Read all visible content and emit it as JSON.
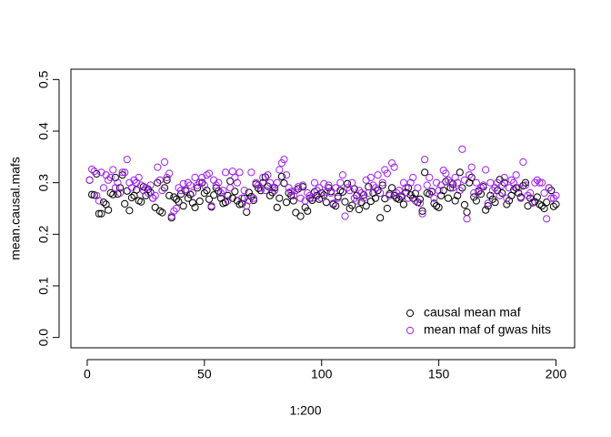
{
  "chart_data": {
    "type": "scatter",
    "xlabel": "1:200",
    "ylabel": "mean.causal.mafs",
    "xlim": [
      -6.96,
      207.96
    ],
    "ylim": [
      -0.02,
      0.52
    ],
    "xticks": [
      0,
      50,
      100,
      150,
      200
    ],
    "yticks": [
      {
        "value": 0,
        "label": "0.0"
      },
      0.1,
      0.2,
      0.3,
      0.4,
      0.5
    ],
    "legend": "bottomright",
    "x": [
      1,
      2,
      3,
      4,
      5,
      6,
      7,
      8,
      9,
      10,
      11,
      12,
      13,
      14,
      15,
      16,
      17,
      18,
      19,
      20,
      21,
      22,
      23,
      24,
      25,
      26,
      27,
      28,
      29,
      30,
      31,
      32,
      33,
      34,
      35,
      36,
      37,
      38,
      39,
      40,
      41,
      42,
      43,
      44,
      45,
      46,
      47,
      48,
      49,
      50,
      51,
      52,
      53,
      54,
      55,
      56,
      57,
      58,
      59,
      60,
      61,
      62,
      63,
      64,
      65,
      66,
      67,
      68,
      69,
      70,
      71,
      72,
      73,
      74,
      75,
      76,
      77,
      78,
      79,
      80,
      81,
      82,
      83,
      84,
      85,
      86,
      87,
      88,
      89,
      90,
      91,
      92,
      93,
      94,
      95,
      96,
      97,
      98,
      99,
      100,
      101,
      102,
      103,
      104,
      105,
      106,
      107,
      108,
      109,
      110,
      111,
      112,
      113,
      114,
      115,
      116,
      117,
      118,
      119,
      120,
      121,
      122,
      123,
      124,
      125,
      126,
      127,
      128,
      129,
      130,
      131,
      132,
      133,
      134,
      135,
      136,
      137,
      138,
      139,
      140,
      141,
      142,
      143,
      144,
      145,
      146,
      147,
      148,
      149,
      150,
      151,
      152,
      153,
      154,
      155,
      156,
      157,
      158,
      159,
      160,
      161,
      162,
      163,
      164,
      165,
      166,
      167,
      168,
      169,
      170,
      171,
      172,
      173,
      174,
      175,
      176,
      177,
      178,
      179,
      180,
      181,
      182,
      183,
      184,
      185,
      186,
      187,
      188,
      189,
      190,
      191,
      192,
      193,
      194,
      195,
      196,
      197,
      198,
      199,
      200
    ],
    "series": [
      {
        "name": "causal mean maf",
        "color": "#000000",
        "values": [
          0.305,
          0.277,
          0.276,
          0.317,
          0.24,
          0.24,
          0.262,
          0.258,
          0.247,
          0.28,
          0.277,
          0.31,
          0.278,
          0.29,
          0.315,
          0.259,
          0.284,
          0.246,
          0.271,
          0.275,
          0.286,
          0.265,
          0.263,
          0.292,
          0.275,
          0.287,
          0.281,
          0.27,
          0.252,
          0.3,
          0.245,
          0.242,
          0.29,
          0.305,
          0.275,
          0.232,
          0.272,
          0.268,
          0.263,
          0.278,
          0.255,
          0.284,
          0.27,
          0.277,
          0.261,
          0.252,
          0.29,
          0.264,
          0.3,
          0.28,
          0.285,
          0.268,
          0.253,
          0.276,
          0.29,
          0.284,
          0.27,
          0.26,
          0.262,
          0.275,
          0.303,
          0.27,
          0.283,
          0.265,
          0.258,
          0.259,
          0.27,
          0.243,
          0.281,
          0.273,
          0.266,
          0.297,
          0.289,
          0.285,
          0.3,
          0.311,
          0.293,
          0.275,
          0.281,
          0.29,
          0.252,
          0.27,
          0.312,
          0.299,
          0.262,
          0.28,
          0.275,
          0.265,
          0.242,
          0.288,
          0.235,
          0.292,
          0.252,
          0.245,
          0.27,
          0.266,
          0.282,
          0.275,
          0.268,
          0.28,
          0.276,
          0.262,
          0.29,
          0.283,
          0.258,
          0.255,
          0.273,
          0.285,
          0.282,
          0.263,
          0.298,
          0.25,
          0.256,
          0.288,
          0.275,
          0.248,
          0.262,
          0.276,
          0.255,
          0.292,
          0.264,
          0.28,
          0.27,
          0.285,
          0.232,
          0.295,
          0.269,
          0.25,
          0.278,
          0.29,
          0.275,
          0.27,
          0.268,
          0.272,
          0.258,
          0.281,
          0.29,
          0.276,
          0.27,
          0.279,
          0.262,
          0.268,
          0.245,
          0.32,
          0.28,
          0.278,
          0.283,
          0.26,
          0.255,
          0.252,
          0.275,
          0.285,
          0.302,
          0.27,
          0.29,
          0.297,
          0.265,
          0.275,
          0.32,
          0.29,
          0.257,
          0.243,
          0.3,
          0.31,
          0.272,
          0.265,
          0.283,
          0.278,
          0.292,
          0.247,
          0.255,
          0.275,
          0.268,
          0.262,
          0.285,
          0.306,
          0.28,
          0.3,
          0.258,
          0.265,
          0.275,
          0.286,
          0.29,
          0.28,
          0.272,
          0.294,
          0.3,
          0.255,
          0.27,
          0.261,
          0.263,
          0.272,
          0.258,
          0.255,
          0.25,
          0.262,
          0.29,
          0.285,
          0.254,
          0.258
        ]
      },
      {
        "name": "mean maf of gwas hits",
        "color": "#a020f0",
        "values": [
          0.305,
          0.326,
          0.322,
          0.275,
          0.265,
          0.32,
          0.29,
          0.315,
          0.305,
          0.31,
          0.325,
          0.29,
          0.3,
          0.28,
          0.32,
          0.32,
          0.345,
          0.3,
          0.29,
          0.305,
          0.3,
          0.31,
          0.295,
          0.285,
          0.29,
          0.28,
          0.295,
          0.27,
          0.275,
          0.33,
          0.305,
          0.285,
          0.34,
          0.31,
          0.318,
          0.235,
          0.245,
          0.25,
          0.29,
          0.285,
          0.298,
          0.287,
          0.3,
          0.295,
          0.28,
          0.31,
          0.295,
          0.3,
          0.31,
          0.295,
          0.315,
          0.318,
          0.255,
          0.305,
          0.295,
          0.3,
          0.28,
          0.285,
          0.32,
          0.265,
          0.29,
          0.322,
          0.31,
          0.3,
          0.32,
          0.27,
          0.285,
          0.255,
          0.265,
          0.32,
          0.27,
          0.3,
          0.295,
          0.29,
          0.31,
          0.285,
          0.315,
          0.3,
          0.29,
          0.285,
          0.3,
          0.325,
          0.338,
          0.345,
          0.315,
          0.29,
          0.283,
          0.275,
          0.285,
          0.292,
          0.27,
          0.295,
          0.265,
          0.28,
          0.275,
          0.27,
          0.3,
          0.285,
          0.29,
          0.27,
          0.298,
          0.282,
          0.295,
          0.28,
          0.26,
          0.29,
          0.27,
          0.3,
          0.315,
          0.235,
          0.29,
          0.285,
          0.3,
          0.27,
          0.265,
          0.285,
          0.28,
          0.27,
          0.305,
          0.28,
          0.31,
          0.295,
          0.29,
          0.315,
          0.28,
          0.3,
          0.325,
          0.318,
          0.275,
          0.338,
          0.33,
          0.28,
          0.285,
          0.275,
          0.3,
          0.29,
          0.27,
          0.3,
          0.31,
          0.265,
          0.29,
          0.26,
          0.24,
          0.345,
          0.295,
          0.31,
          0.282,
          0.27,
          0.3,
          0.285,
          0.295,
          0.324,
          0.318,
          0.305,
          0.3,
          0.29,
          0.31,
          0.3,
          0.285,
          0.365,
          0.305,
          0.23,
          0.315,
          0.33,
          0.28,
          0.3,
          0.285,
          0.29,
          0.295,
          0.325,
          0.26,
          0.3,
          0.285,
          0.29,
          0.3,
          0.275,
          0.295,
          0.31,
          0.27,
          0.29,
          0.305,
          0.3,
          0.315,
          0.29,
          0.27,
          0.34,
          0.295,
          0.275,
          0.28,
          0.262,
          0.3,
          0.305,
          0.3,
          0.3,
          0.28,
          0.23,
          0.29,
          0.27,
          0.27,
          0.275
        ]
      }
    ]
  }
}
